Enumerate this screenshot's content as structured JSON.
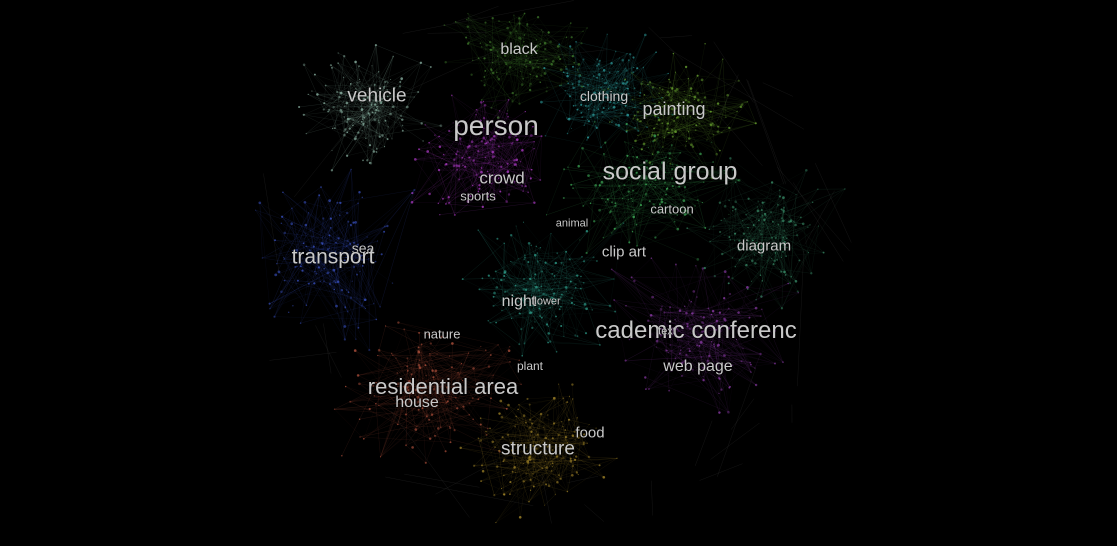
{
  "labels": {
    "black": "black",
    "vehicle": "vehicle",
    "clothing": "clothing",
    "painting": "painting",
    "person": "person",
    "crowd": "crowd",
    "social_group": "social group",
    "sports": "sports",
    "cartoon": "cartoon",
    "animal": "animal",
    "sea": "sea",
    "transport": "transport",
    "clip_art": "clip art",
    "diagram": "diagram",
    "night": "night",
    "flower": "flower",
    "academic_conference": "cademic conferenc",
    "text": "text",
    "nature": "nature",
    "plant": "plant",
    "web_page": "web page",
    "residential_area": "residential area",
    "house": "house",
    "food": "food",
    "structure": "structure"
  },
  "clusters": [
    {
      "name": "black",
      "color": "#3f7a2c"
    },
    {
      "name": "vehicle",
      "color": "#8fb8a8"
    },
    {
      "name": "clothing",
      "color": "#2fa3a3"
    },
    {
      "name": "painting",
      "color": "#6aa531"
    },
    {
      "name": "person",
      "color": "#b03cc9"
    },
    {
      "name": "social group",
      "color": "#3fae5a"
    },
    {
      "name": "transport",
      "color": "#3b54c8"
    },
    {
      "name": "diagram",
      "color": "#3a8f6a"
    },
    {
      "name": "cademic conferenc",
      "color": "#8a3aa6"
    },
    {
      "name": "residential area",
      "color": "#b4533e"
    },
    {
      "name": "structure",
      "color": "#a88a2a"
    },
    {
      "name": "night",
      "color": "#2f9f8c"
    }
  ]
}
